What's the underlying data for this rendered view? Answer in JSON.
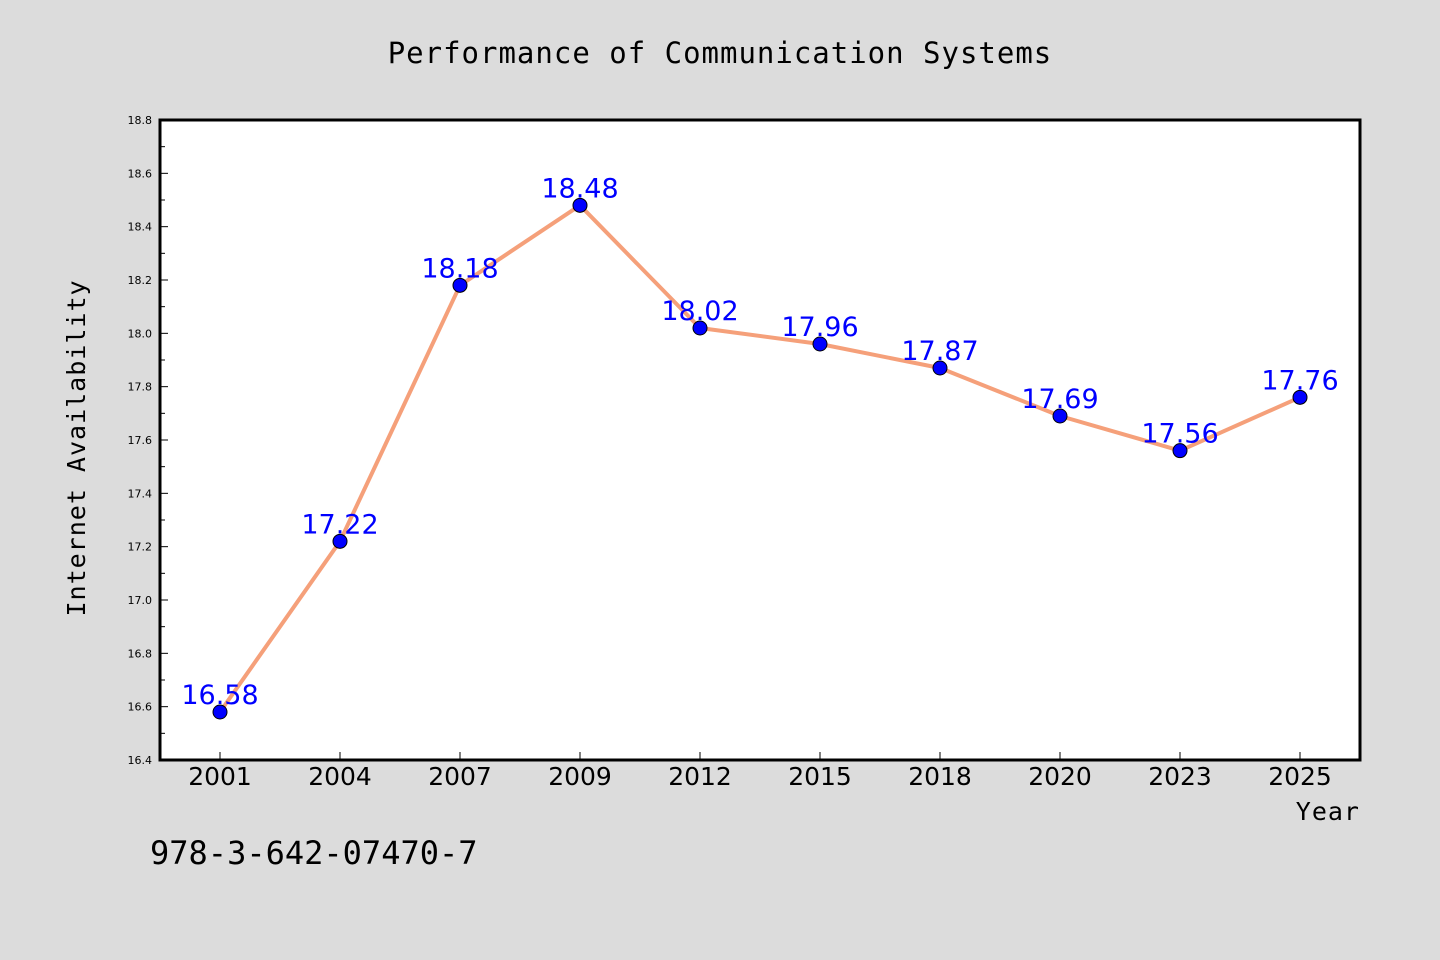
{
  "chart_data": {
    "type": "line",
    "title": "Performance of Communication Systems",
    "xlabel": "Year",
    "ylabel": "Internet Availability",
    "categories": [
      "2001",
      "2004",
      "2007",
      "2009",
      "2012",
      "2015",
      "2018",
      "2020",
      "2023",
      "2025"
    ],
    "series": [
      {
        "values": [
          16.58,
          17.22,
          18.18,
          18.48,
          18.02,
          17.96,
          17.87,
          17.69,
          17.56,
          17.76
        ],
        "line_color": "#f5a07a",
        "marker_color": "#0000ff"
      }
    ],
    "data_labels": [
      "16.58",
      "17.22",
      "18.18",
      "18.48",
      "18.02",
      "17.96",
      "17.87",
      "17.69",
      "17.56",
      "17.76"
    ],
    "ylim": [
      16.4,
      18.8
    ],
    "yticks": [
      "16.4",
      "16.6",
      "16.8",
      "17.0",
      "17.2",
      "17.4",
      "17.6",
      "17.8",
      "18.0",
      "18.2",
      "18.4",
      "18.6",
      "18.8"
    ],
    "grid": false,
    "legend": "none"
  },
  "footnote": "978-3-642-07470-7",
  "colors": {
    "background": "#dcdcdc",
    "plot_area": "#ffffff",
    "data_label": "#0000ff"
  }
}
